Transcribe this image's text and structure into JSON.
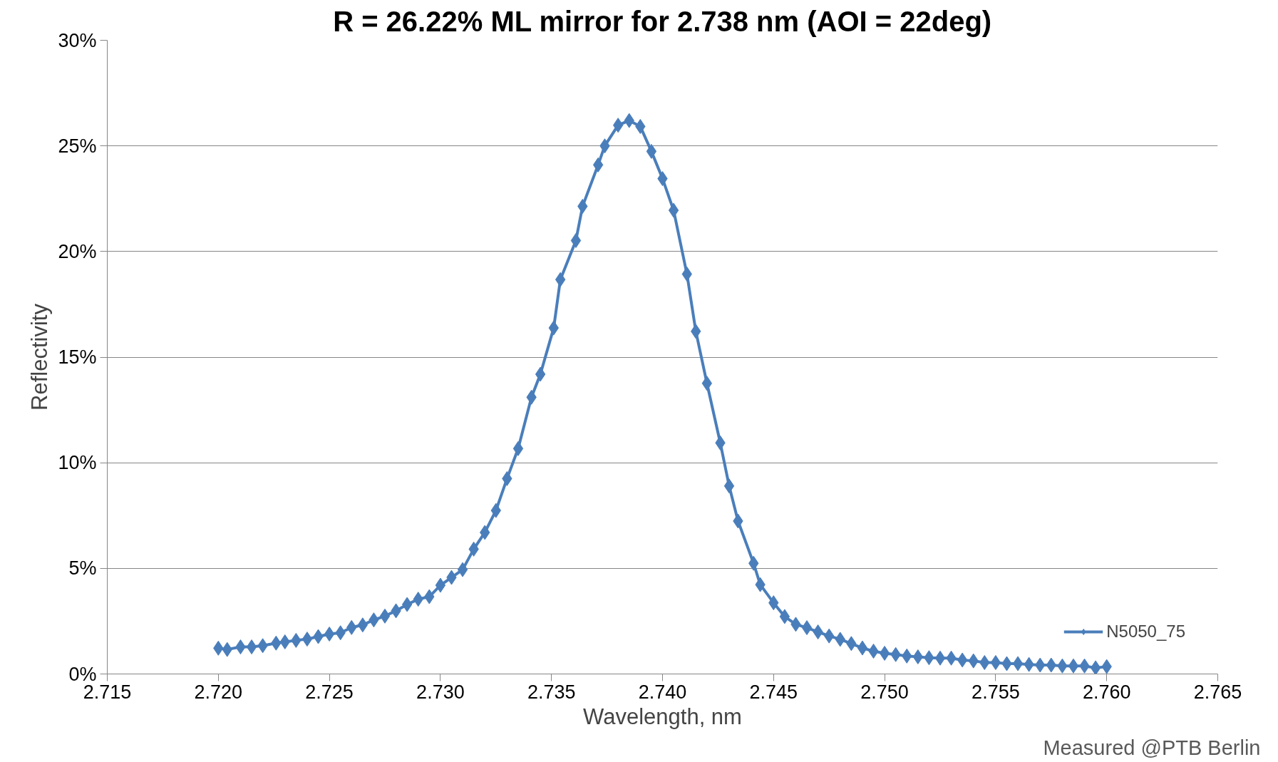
{
  "chart_data": {
    "type": "line",
    "title": "R = 26.22% ML mirror for 2.738 nm (AOI = 22deg)",
    "xlabel": "Wavelength, nm",
    "ylabel": "Reflectivity",
    "annotations": [
      "Measured @PTB Berlin"
    ],
    "xlim": [
      2.715,
      2.765
    ],
    "xticks": [
      {
        "value": 2.715,
        "label": "2.715"
      },
      {
        "value": 2.72,
        "label": "2.720"
      },
      {
        "value": 2.725,
        "label": "2.725"
      },
      {
        "value": 2.73,
        "label": "2.730"
      },
      {
        "value": 2.735,
        "label": "2.735"
      },
      {
        "value": 2.74,
        "label": "2.740"
      },
      {
        "value": 2.745,
        "label": "2.745"
      },
      {
        "value": 2.75,
        "label": "2.750"
      },
      {
        "value": 2.755,
        "label": "2.755"
      },
      {
        "value": 2.76,
        "label": "2.760"
      },
      {
        "value": 2.765,
        "label": "2.765"
      }
    ],
    "ylim": [
      0,
      30
    ],
    "yticks": [
      {
        "value": 0,
        "label": "0%"
      },
      {
        "value": 5,
        "label": "5%"
      },
      {
        "value": 10,
        "label": "10%"
      },
      {
        "value": 15,
        "label": "15%"
      },
      {
        "value": 20,
        "label": "20%"
      },
      {
        "value": 25,
        "label": "25%"
      },
      {
        "value": 30,
        "label": "30%"
      }
    ],
    "grid": "y",
    "legend": "bottom right",
    "marker": "diamond",
    "line_style": "solid",
    "series": [
      {
        "name": "N5050_75",
        "color": "#4a7ebb",
        "x": [
          2.72,
          2.7204,
          2.721,
          2.7215,
          2.722,
          2.7226,
          2.723,
          2.7235,
          2.724,
          2.7245,
          2.725,
          2.7255,
          2.726,
          2.7265,
          2.727,
          2.7275,
          2.728,
          2.7285,
          2.729,
          2.7295,
          2.73,
          2.7305,
          2.731,
          2.7315,
          2.732,
          2.7325,
          2.733,
          2.7335,
          2.7341,
          2.7345,
          2.7351,
          2.7354,
          2.7361,
          2.7364,
          2.7371,
          2.7374,
          2.738,
          2.7385,
          2.739,
          2.7395,
          2.74,
          2.7405,
          2.7411,
          2.7415,
          2.742,
          2.7426,
          2.743,
          2.7434,
          2.7441,
          2.7444,
          2.745,
          2.7455,
          2.746,
          2.7465,
          2.747,
          2.7475,
          2.748,
          2.7485,
          2.749,
          2.7495,
          2.75,
          2.7505,
          2.751,
          2.7515,
          2.752,
          2.7525,
          2.753,
          2.7535,
          2.754,
          2.7545,
          2.755,
          2.7555,
          2.756,
          2.7565,
          2.757,
          2.7575,
          2.758,
          2.7585,
          2.759,
          2.7595,
          2.76
        ],
        "values": [
          1.22,
          1.16,
          1.28,
          1.28,
          1.34,
          1.46,
          1.52,
          1.59,
          1.65,
          1.77,
          1.89,
          1.95,
          2.2,
          2.32,
          2.56,
          2.74,
          2.99,
          3.29,
          3.54,
          3.66,
          4.2,
          4.57,
          4.94,
          5.91,
          6.7,
          7.74,
          9.25,
          10.67,
          13.1,
          14.19,
          16.38,
          18.67,
          20.52,
          22.14,
          24.1,
          25.0,
          25.98,
          26.2,
          25.92,
          24.74,
          23.45,
          21.95,
          18.93,
          16.22,
          13.76,
          10.94,
          8.9,
          7.24,
          5.24,
          4.23,
          3.37,
          2.72,
          2.35,
          2.19,
          1.99,
          1.8,
          1.64,
          1.44,
          1.23,
          1.08,
          0.98,
          0.92,
          0.85,
          0.81,
          0.77,
          0.75,
          0.75,
          0.66,
          0.62,
          0.54,
          0.54,
          0.49,
          0.49,
          0.45,
          0.42,
          0.42,
          0.38,
          0.38,
          0.38,
          0.29,
          0.35
        ]
      }
    ]
  }
}
